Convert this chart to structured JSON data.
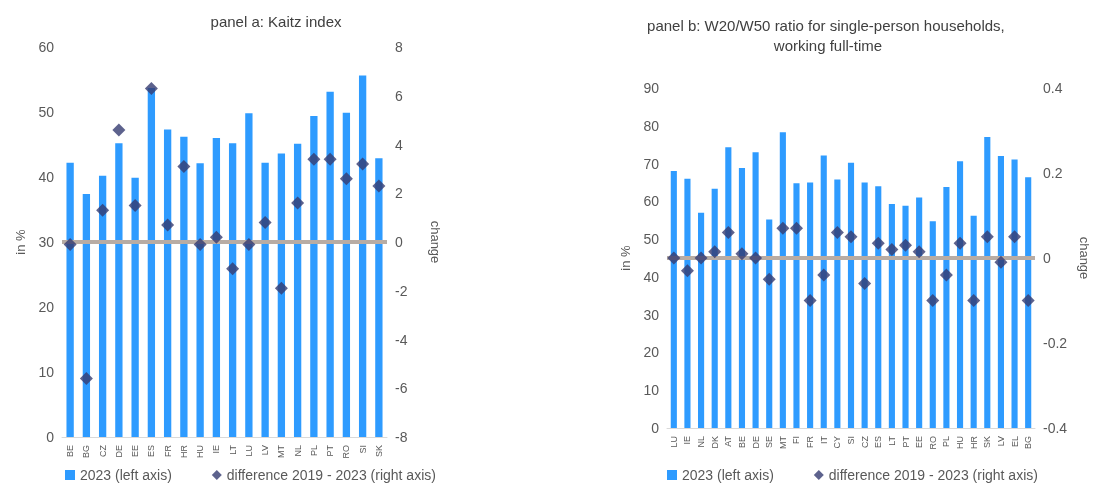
{
  "chart_data": [
    {
      "type": "bar",
      "title": "panel a: Kaitz index",
      "ylabel": "in %",
      "y2label": "change",
      "legend": "bottom",
      "grid": false,
      "categories": [
        "BE",
        "BG",
        "CZ",
        "DE",
        "EE",
        "ES",
        "FR",
        "HR",
        "HU",
        "IE",
        "LT",
        "LU",
        "LV",
        "MT",
        "NL",
        "PL",
        "PT",
        "RO",
        "SI",
        "SK"
      ],
      "ylim": [
        0,
        60
      ],
      "yticks": [
        0,
        10,
        20,
        30,
        40,
        50,
        60
      ],
      "y2lim": [
        -8,
        8
      ],
      "y2ticks": [
        -8,
        -6,
        -4,
        -2,
        0,
        2,
        4,
        6,
        8
      ],
      "series": [
        {
          "name": "2023 (left axis)",
          "color": "#2e9bff",
          "values": [
            42.2,
            37.4,
            40.2,
            45.2,
            39.9,
            53.7,
            47.3,
            46.2,
            42.1,
            46.0,
            45.2,
            49.8,
            42.2,
            43.6,
            45.1,
            49.4,
            53.1,
            49.9,
            55.6,
            42.9
          ]
        },
        {
          "name": "difference 2019 - 2023 (right axis)",
          "type": "scatter",
          "axis": "y2",
          "marker": "diamond",
          "color": "#343b70",
          "values": [
            -0.1,
            -5.6,
            1.3,
            4.6,
            1.5,
            6.3,
            0.7,
            3.1,
            -0.1,
            0.2,
            -1.1,
            -0.1,
            0.8,
            -1.9,
            1.6,
            3.4,
            3.4,
            2.6,
            3.2,
            2.3
          ]
        }
      ],
      "ref_lines": [
        {
          "axis": "y2",
          "value": 0,
          "color": "#b8aca4"
        }
      ]
    },
    {
      "type": "bar",
      "title": "panel b: W20/W50 ratio for single-person households, working full-time",
      "ylabel": "in %",
      "y2label": "change",
      "legend": "bottom",
      "grid": false,
      "categories": [
        "LU",
        "IE",
        "NL",
        "DK",
        "AT",
        "BE",
        "DE",
        "SE",
        "MT",
        "FI",
        "FR",
        "IT",
        "CY",
        "SI",
        "CZ",
        "ES",
        "LT",
        "PT",
        "EE",
        "RO",
        "PL",
        "HU",
        "HR",
        "SK",
        "LV",
        "EL",
        "BG"
      ],
      "ylim": [
        0,
        90
      ],
      "yticks": [
        0,
        10,
        20,
        30,
        40,
        50,
        60,
        70,
        80,
        90
      ],
      "y2lim": [
        -0.4,
        0.4
      ],
      "y2ticks": [
        -0.4,
        -0.2,
        0,
        0.2,
        0.4
      ],
      "series": [
        {
          "name": "2023 (left axis)",
          "color": "#2e9bff",
          "values": [
            68,
            66,
            57,
            63.3,
            74.3,
            68.8,
            73,
            55.2,
            78.3,
            64.8,
            65,
            72.1,
            65.8,
            70.2,
            65,
            64,
            59.3,
            58.8,
            61,
            54.7,
            63.8,
            70.6,
            56.2,
            77,
            72,
            71.1,
            66.4
          ]
        },
        {
          "name": "difference 2019 - 2023 (right axis)",
          "type": "scatter",
          "axis": "y2",
          "marker": "diamond",
          "color": "#343b70",
          "values": [
            0,
            -0.03,
            0,
            0.015,
            0.06,
            0.01,
            0,
            -0.05,
            0.07,
            0.07,
            -0.1,
            -0.04,
            0.06,
            0.05,
            -0.06,
            0.035,
            0.02,
            0.03,
            0.015,
            -0.1,
            -0.04,
            0.035,
            -0.1,
            0.05,
            -0.01,
            0.05,
            -0.1
          ]
        }
      ],
      "ref_lines": [
        {
          "axis": "y2",
          "value": 0,
          "color": "#b8aca4"
        }
      ]
    }
  ]
}
